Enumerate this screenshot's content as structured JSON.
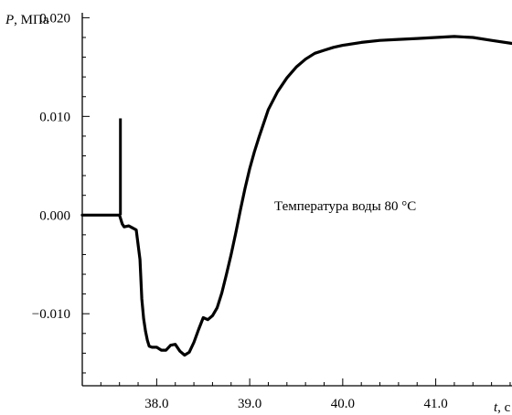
{
  "chart_data": {
    "type": "line",
    "xlabel_var": "t",
    "xlabel_unit": ", с",
    "ylabel_var": "P",
    "ylabel_unit": ", МПа",
    "xlim": [
      37.2,
      41.82
    ],
    "ylim": [
      -0.0173,
      0.0205
    ],
    "x_ticks": [
      38.0,
      39.0,
      40.0,
      41.0
    ],
    "x_tick_labels": [
      "38.0",
      "39.0",
      "40.0",
      "41.0"
    ],
    "y_ticks": [
      -0.01,
      0.0,
      0.01,
      0.02
    ],
    "y_tick_labels": [
      "−0.010",
      "0.000",
      "0.010",
      "0.020"
    ],
    "annotation": "Температура воды 80 °C",
    "series": [
      {
        "x": [
          37.2,
          37.4,
          37.6,
          37.61,
          37.615,
          37.62,
          37.63,
          37.65,
          37.7,
          37.74,
          37.78,
          37.82,
          37.84,
          37.86,
          37.88,
          37.9,
          37.92,
          37.95,
          38.0,
          38.05,
          38.1,
          38.15,
          38.2,
          38.25,
          38.3,
          38.35,
          38.4,
          38.45,
          38.5,
          38.55,
          38.6,
          38.65,
          38.7,
          38.75,
          38.8,
          38.85,
          38.9,
          38.95,
          39.0,
          39.05,
          39.1,
          39.15,
          39.2,
          39.3,
          39.4,
          39.5,
          39.6,
          39.7,
          39.8,
          39.9,
          40.0,
          40.2,
          40.4,
          40.6,
          40.8,
          41.0,
          41.2,
          41.4,
          41.6,
          41.82
        ],
        "y": [
          0.0,
          0.0,
          0.0,
          0.0095,
          0.0098,
          0.003,
          -0.0009,
          -0.0012,
          -0.0011,
          -0.0013,
          -0.0015,
          -0.0045,
          -0.0085,
          -0.0105,
          -0.0118,
          -0.0127,
          -0.0133,
          -0.0134,
          -0.0134,
          -0.0137,
          -0.0137,
          -0.0132,
          -0.0131,
          -0.0138,
          -0.0142,
          -0.0139,
          -0.0129,
          -0.0116,
          -0.0104,
          -0.0106,
          -0.0102,
          -0.0094,
          -0.0079,
          -0.006,
          -0.004,
          -0.0018,
          0.0005,
          0.0027,
          0.0047,
          0.0064,
          0.0079,
          0.0093,
          0.0107,
          0.0125,
          0.0139,
          0.015,
          0.0158,
          0.0164,
          0.0167,
          0.017,
          0.0172,
          0.0175,
          0.0177,
          0.0178,
          0.0179,
          0.018,
          0.0181,
          0.018,
          0.0177,
          0.0174
        ]
      }
    ]
  }
}
